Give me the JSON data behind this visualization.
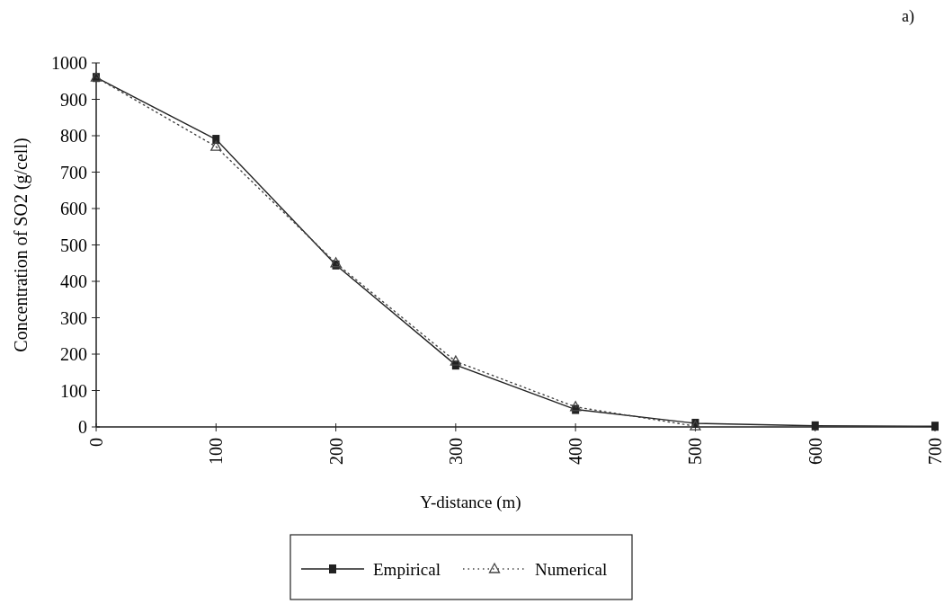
{
  "chart_data": {
    "type": "line",
    "xlabel": "Y-distance (m)",
    "ylabel": "Concentration of SO2 (g/cell)",
    "annotations": [
      "a)"
    ],
    "xlim": [
      0,
      700
    ],
    "xticks": [
      0,
      100,
      200,
      300,
      400,
      500,
      600,
      700
    ],
    "ylim": [
      0,
      1000
    ],
    "yticks": [
      0,
      100,
      200,
      300,
      400,
      500,
      600,
      700,
      800,
      900,
      1000
    ],
    "grid": false,
    "legend": "bottom",
    "series": [
      {
        "name": "Empirical",
        "color": "#222222",
        "marker": "square",
        "line_style": "solid",
        "x": [
          0,
          100,
          200,
          300,
          400,
          500,
          600,
          700
        ],
        "values": [
          960,
          790,
          445,
          170,
          48,
          10,
          3,
          2
        ]
      },
      {
        "name": "Numerical",
        "color": "#444444",
        "marker": "triangle",
        "line_style": "dotted",
        "x": [
          0,
          100,
          200,
          300,
          400,
          500
        ],
        "values": [
          960,
          770,
          450,
          180,
          55,
          2
        ]
      }
    ]
  }
}
